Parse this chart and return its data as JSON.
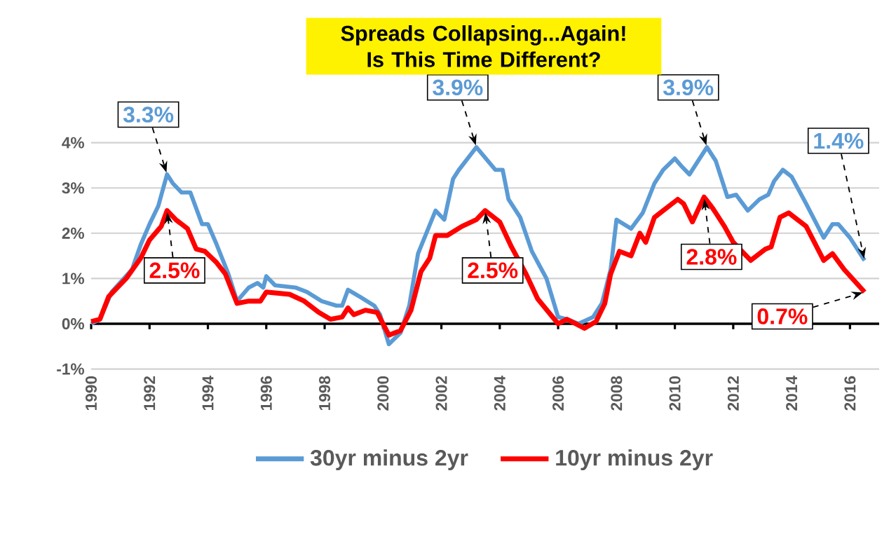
{
  "chart_data": {
    "type": "line",
    "title": "Spreads Collapsing...Again! Is This Time Different?",
    "xlim": [
      1990,
      2017
    ],
    "ylim": [
      -1,
      4
    ],
    "xticks": [
      1990,
      1992,
      1994,
      1996,
      1998,
      2000,
      2002,
      2004,
      2006,
      2008,
      2010,
      2012,
      2014,
      2016
    ],
    "yticks": [
      {
        "value": -1,
        "label": "-1%"
      },
      {
        "value": 0,
        "label": "0%"
      },
      {
        "value": 1,
        "label": "1%"
      },
      {
        "value": 2,
        "label": "2%"
      },
      {
        "value": 3,
        "label": "3%"
      },
      {
        "value": 4,
        "label": "4%"
      }
    ],
    "grid": "y",
    "legend": "bottom",
    "series": [
      {
        "name": "30yr minus 2yr",
        "color": "#5b9bd5",
        "x": [
          1990,
          1990.3,
          1990.7,
          1991.4,
          1991.7,
          1992.0,
          1992.3,
          1992.6,
          1992.8,
          1993.1,
          1993.4,
          1993.8,
          1994.0,
          1994.3,
          1994.7,
          1995.0,
          1995.4,
          1995.7,
          1995.9,
          1996.0,
          1996.3,
          1997.0,
          1997.4,
          1997.9,
          1998.4,
          1998.6,
          1998.8,
          1999.2,
          1999.7,
          1999.9,
          2000.2,
          2000.6,
          2000.9,
          2001.2,
          2001.8,
          2002.1,
          2002.4,
          2002.6,
          2003.2,
          2003.85,
          2004.1,
          2004.3,
          2004.7,
          2005.1,
          2005.6,
          2006.0,
          2006.3,
          2006.7,
          2007.2,
          2007.5,
          2007.8,
          2008.0,
          2008.5,
          2008.9,
          2009.3,
          2009.6,
          2010.0,
          2010.2,
          2010.5,
          2010.8,
          2011.1,
          2011.4,
          2011.8,
          2012.1,
          2012.5,
          2012.9,
          2013.2,
          2013.4,
          2013.7,
          2014.0,
          2014.5,
          2015.1,
          2015.4,
          2015.6,
          2016.0,
          2016.5
        ],
        "values": [
          0.0,
          0.1,
          0.7,
          1.2,
          1.75,
          2.2,
          2.6,
          3.3,
          3.1,
          2.9,
          2.9,
          2.2,
          2.2,
          1.75,
          1.1,
          0.5,
          0.8,
          0.9,
          0.8,
          1.05,
          0.85,
          0.8,
          0.7,
          0.5,
          0.4,
          0.4,
          0.75,
          0.6,
          0.4,
          0.2,
          -0.45,
          -0.2,
          0.4,
          1.55,
          2.5,
          2.3,
          3.2,
          3.4,
          3.9,
          3.4,
          3.4,
          2.75,
          2.35,
          1.6,
          1.0,
          0.15,
          0.1,
          0.0,
          0.15,
          0.45,
          1.2,
          2.3,
          2.1,
          2.45,
          3.1,
          3.4,
          3.65,
          3.5,
          3.3,
          3.6,
          3.9,
          3.6,
          2.8,
          2.85,
          2.5,
          2.75,
          2.85,
          3.15,
          3.4,
          3.25,
          2.65,
          1.9,
          2.2,
          2.2,
          1.9,
          1.4
        ]
      },
      {
        "name": "10yr minus 2yr",
        "color": "#ff0000",
        "x": [
          1990,
          1990.3,
          1990.6,
          1991.2,
          1991.7,
          1992.0,
          1992.4,
          1992.6,
          1992.9,
          1993.3,
          1993.6,
          1993.9,
          1994.3,
          1994.6,
          1995.0,
          1995.4,
          1995.8,
          1996.0,
          1996.8,
          1997.3,
          1997.8,
          1998.2,
          1998.6,
          1998.8,
          1999.0,
          1999.4,
          1999.8,
          2000.2,
          2000.6,
          2000.96,
          2001.3,
          2001.6,
          2001.8,
          2002.2,
          2002.7,
          2003.2,
          2003.5,
          2004.0,
          2004.4,
          2004.9,
          2005.3,
          2006.0,
          2006.3,
          2006.9,
          2007.3,
          2007.6,
          2007.8,
          2008.1,
          2008.5,
          2008.8,
          2009.0,
          2009.3,
          2009.6,
          2010.1,
          2010.3,
          2010.6,
          2011.0,
          2011.3,
          2011.7,
          2012.0,
          2012.6,
          2013.1,
          2013.3,
          2013.6,
          2013.9,
          2014.5,
          2015.1,
          2015.4,
          2015.8,
          2016.5
        ],
        "values": [
          0.05,
          0.1,
          0.6,
          1.0,
          1.45,
          1.85,
          2.15,
          2.5,
          2.3,
          2.1,
          1.65,
          1.6,
          1.35,
          1.1,
          0.45,
          0.5,
          0.5,
          0.7,
          0.65,
          0.5,
          0.25,
          0.1,
          0.15,
          0.35,
          0.2,
          0.3,
          0.25,
          -0.25,
          -0.15,
          0.3,
          1.15,
          1.45,
          1.95,
          1.95,
          2.15,
          2.3,
          2.5,
          2.25,
          1.7,
          1.1,
          0.55,
          0.0,
          0.1,
          -0.1,
          0.05,
          0.45,
          1.1,
          1.6,
          1.5,
          2.0,
          1.8,
          2.35,
          2.5,
          2.75,
          2.65,
          2.25,
          2.8,
          2.55,
          2.15,
          1.8,
          1.4,
          1.65,
          1.7,
          2.35,
          2.45,
          2.15,
          1.4,
          1.55,
          1.2,
          0.7
        ]
      }
    ],
    "annotations": [
      {
        "text": "3.3%",
        "x": 1992.6,
        "y": 3.3
      },
      {
        "text": "2.5%",
        "x": 1992.6,
        "y": 2.5
      },
      {
        "text": "3.9%",
        "x": 2003.2,
        "y": 3.9
      },
      {
        "text": "2.5%",
        "x": 2003.5,
        "y": 2.5
      },
      {
        "text": "3.9%",
        "x": 2011.1,
        "y": 3.9
      },
      {
        "text": "2.8%",
        "x": 2011.0,
        "y": 2.8
      },
      {
        "text": "1.4%",
        "x": 2016.5,
        "y": 1.4
      },
      {
        "text": "0.7%",
        "x": 2016.5,
        "y": 0.7
      }
    ]
  }
}
